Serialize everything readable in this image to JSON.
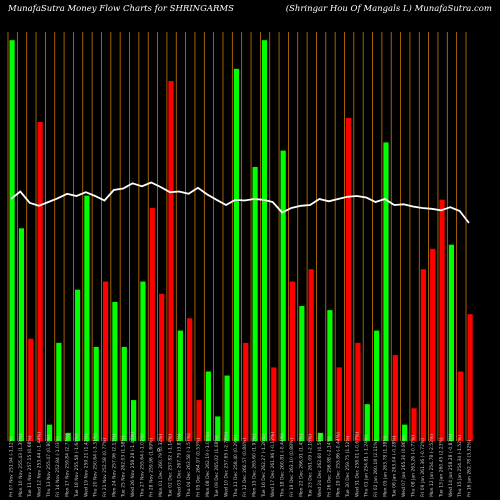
{
  "header": {
    "left": "MunafaSutra  Money Flow  Charts for SHRINGARMS",
    "right": "(Shringar Hou   Of Mangals L) MunafaSutra.com"
  },
  "chart_data": {
    "type": "bar",
    "zero_label": "0",
    "categories": [
      "Fri 16 Jan 262.78 (3.32%)",
      "Thu 15 Jan 254.34 (-1.52%)",
      "Wed 14 Jan 258.28 (-0.83%)",
      "Tue 13 Jan 260.45 (2.23%)",
      "Mon 12 Jan 254.78 (-2.52%)",
      "Fri 09 Jan 261.36 (-0.72%)",
      "Thu 08 Jan 263.26 (-0.77%)",
      "Wed 07 Jan 265.30 (0.86%)",
      "Tue 06 Jan 263.04 (-0.28%)",
      "Mon 05 Jan 263.78 (1.38%)",
      "Fri 02 Jan 260.18 (2.11%)",
      "Thu 01 Jan 254.81 (-1.24%)",
      "Wed 31 Dec 258.01 (-0.67%)",
      "Tue 30 Dec 259.75 (1.52%)",
      "Mon 29 Dec 255.86 (-0.44%)",
      "Fri 26 Dec 256.98 (-2.14%)",
      "Wed 24 Dec 262.60 (0.58%)",
      "Tue 23 Dec 261.09 (-2.18%)",
      "Mon 22 Dec 266.91 (1.45%)",
      "Fri 19 Dec 263.10 (0.88%)",
      "Thu 18 Dec 260.81 (-0.44%)",
      "Wed 17 Dec 261.96 (-0.12%)",
      "Tue 16 Dec 262.27 (-1.26%)",
      "Mon 15 Dec 265.60 (1.93%)",
      "Fri 12 Dec 260.57 (0.84%)",
      "Thu 11 Dec 258.40 (0.29%)",
      "Wed 10 Dec 257.65 (-2.78%)",
      "Tue 09 Dec 265.02 (1.08%)",
      "Mon 08 Dec 262.19 (-1.05%)",
      "Fri 05 Dec 264.97 (0.53%)",
      "Thu 04 Dec 263.58 (-1.57%)",
      "Wed 03 Dec 267.79 (3.87%)",
      "Tue 02 Dec 257.82 (-1.14%)",
      "Mon 01 Dec 260.79 (0.32%)",
      "Fri 28 Nov 259.96 (1.69%)",
      "Thu 27 Nov 255.64 (-1.02%)",
      "Wed 26 Nov 258.28 (-1.43%)",
      "Tue 25 Nov 262.03 (1.58%)",
      "Mon 24 Nov 257.96 (2.13%)",
      "Fri 21 Nov 252.58 (0.77%)",
      "Thu 20 Nov 250.64 (-3.31%)",
      "Wed 19 Nov 259.21 (1.42%)",
      "Tue 18 Nov 255.58 (-1.64%)",
      "Mon 17 Nov 259.84 (2.77%)",
      "Fri 14 Nov 252.84 (-1.03%)",
      "Thu 13 Nov 255.47 (0.80%)",
      "Wed 12 Nov 253.44 (-1.44%)",
      "Tue 11 Nov 257.15 (0.68%)",
      "Mon 10 Nov 255.43 (1.39%)",
      "Fri 07 Nov 251.94 (-1.12%)"
    ],
    "volume": [
      31,
      17,
      48,
      59,
      47,
      42,
      8,
      4,
      21,
      73,
      27,
      9,
      24,
      79,
      18,
      32,
      2,
      42,
      33,
      39,
      71,
      18,
      98,
      67,
      24,
      91,
      16,
      6,
      17,
      10,
      30,
      27,
      88,
      36,
      57,
      39,
      10,
      23,
      34,
      39,
      23,
      60,
      37,
      2,
      24,
      4,
      78,
      25,
      52,
      98
    ],
    "direction": [
      "down",
      "down",
      "green",
      "down",
      "down",
      "down",
      "down",
      "green",
      "down",
      "green",
      "green",
      "green",
      "down",
      "down",
      "down",
      "green",
      "green",
      "down",
      "green",
      "down",
      "green",
      "down",
      "green",
      "green",
      "down",
      "green",
      "green",
      "green",
      "green",
      "down",
      "down",
      "green",
      "down",
      "down",
      "down",
      "green",
      "green",
      "green",
      "green",
      "down",
      "green",
      "green",
      "green",
      "green",
      "green",
      "green",
      "down",
      "down",
      "green",
      "green"
    ],
    "money_flow_line": [
      55.6,
      57.2,
      57.7,
      57.3,
      57.5,
      57.6,
      57.8,
      58.1,
      58.0,
      58.8,
      58.4,
      59.0,
      59.2,
      59.1,
      58.8,
      58.5,
      58.8,
      58.0,
      57.9,
      57.6,
      57.0,
      58.4,
      58.7,
      58.8,
      58.6,
      58.7,
      58.0,
      58.7,
      59.4,
      60.3,
      59.5,
      59.8,
      59.7,
      60.4,
      61.0,
      60.5,
      60.9,
      60.2,
      60.0,
      58.6,
      59.2,
      59.7,
      59.2,
      59.5,
      58.9,
      58.4,
      57.9,
      58.3,
      59.8,
      58.8
    ],
    "colors": {
      "green": "#00ff00",
      "down": "#ff0000",
      "grid": "#cc7a00",
      "line": "#ffffff",
      "background": "#000000"
    }
  }
}
